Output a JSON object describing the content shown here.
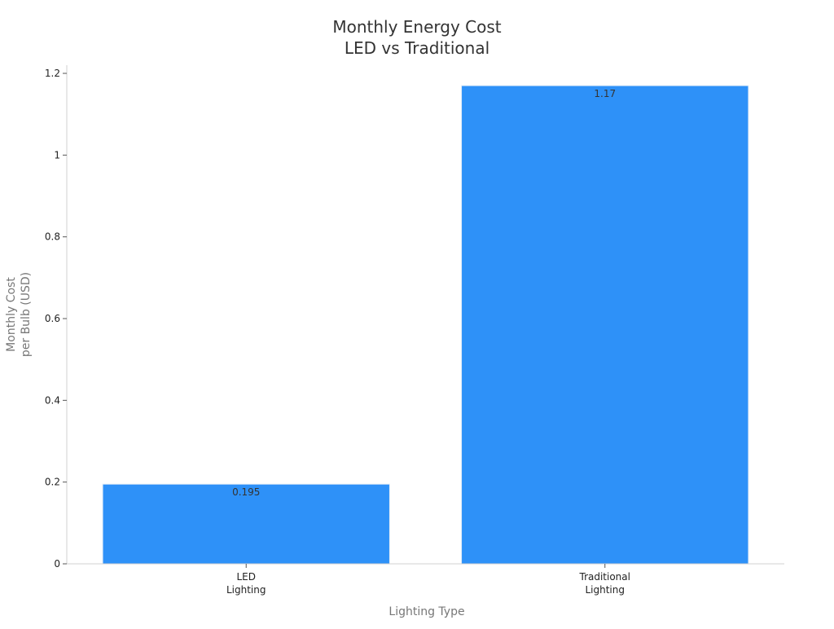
{
  "chart_data": {
    "type": "bar",
    "title_lines": [
      "Monthly Energy Cost",
      "LED vs Traditional"
    ],
    "xlabel": "Lighting Type",
    "ylabel_lines": [
      "Monthly Cost",
      "per Bulb (USD)"
    ],
    "categories": [
      {
        "lines": [
          "LED",
          "Lighting"
        ]
      },
      {
        "lines": [
          "Traditional",
          "Lighting"
        ]
      }
    ],
    "values": [
      0.195,
      1.17
    ],
    "value_labels": [
      "0.195",
      "1.17"
    ],
    "ylim": [
      0,
      1.22
    ],
    "yticks": [
      {
        "value": 0,
        "label": "0"
      },
      {
        "value": 0.2,
        "label": "0.2"
      },
      {
        "value": 0.4,
        "label": "0.4"
      },
      {
        "value": 0.6,
        "label": "0.6"
      },
      {
        "value": 0.8,
        "label": "0.8"
      },
      {
        "value": 1,
        "label": "1"
      },
      {
        "value": 1.2,
        "label": "1.2"
      }
    ],
    "grid": false,
    "legend": "none",
    "colors": {
      "bar": "#2e91f8",
      "bar_edge": "#e6eef8",
      "axis": "#d0d0d0",
      "tick": "#555555"
    }
  }
}
